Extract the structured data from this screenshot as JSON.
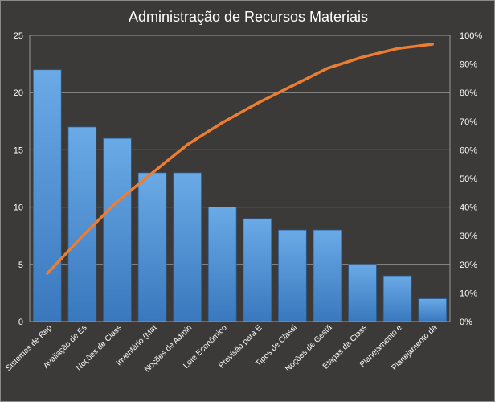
{
  "chart_data": {
    "type": "bar",
    "title": "Administração de Recursos Materiais",
    "categories": [
      "Sistemas de Rep",
      "Avaliação de Es",
      "Noções de Class",
      "Inventário (Mat",
      "Noções de Admin",
      "Lote Econômico",
      "Previsão para E",
      "Tipos de Classi",
      "Noções de Gestã",
      "Etapas da Class",
      "Planejamento e",
      "Planejamento da"
    ],
    "series": [
      {
        "type": "bar",
        "values": [
          22,
          17,
          16,
          13,
          13,
          10,
          9,
          8,
          8,
          5,
          4,
          2
        ]
      },
      {
        "type": "line",
        "axis": "right",
        "values": [
          16.8,
          29.8,
          42.0,
          51.9,
          61.8,
          69.5,
          76.3,
          82.4,
          88.5,
          92.4,
          95.4,
          96.9
        ]
      }
    ],
    "y_left": {
      "min": 0,
      "max": 25,
      "ticks": [
        0,
        5,
        10,
        15,
        20,
        25
      ]
    },
    "y_right": {
      "min": 0,
      "max": 100,
      "ticks": [
        "0%",
        "10%",
        "20%",
        "30%",
        "40%",
        "50%",
        "60%",
        "70%",
        "80%",
        "90%",
        "100%"
      ]
    },
    "grid": true,
    "legend": "none",
    "colors": {
      "background": "#3c3a38",
      "bar_top": "#6aaae6",
      "bar_bottom": "#3a78be",
      "line": "#ec7d31",
      "grid": "#9a9a9a",
      "text": "#ffffff"
    }
  }
}
